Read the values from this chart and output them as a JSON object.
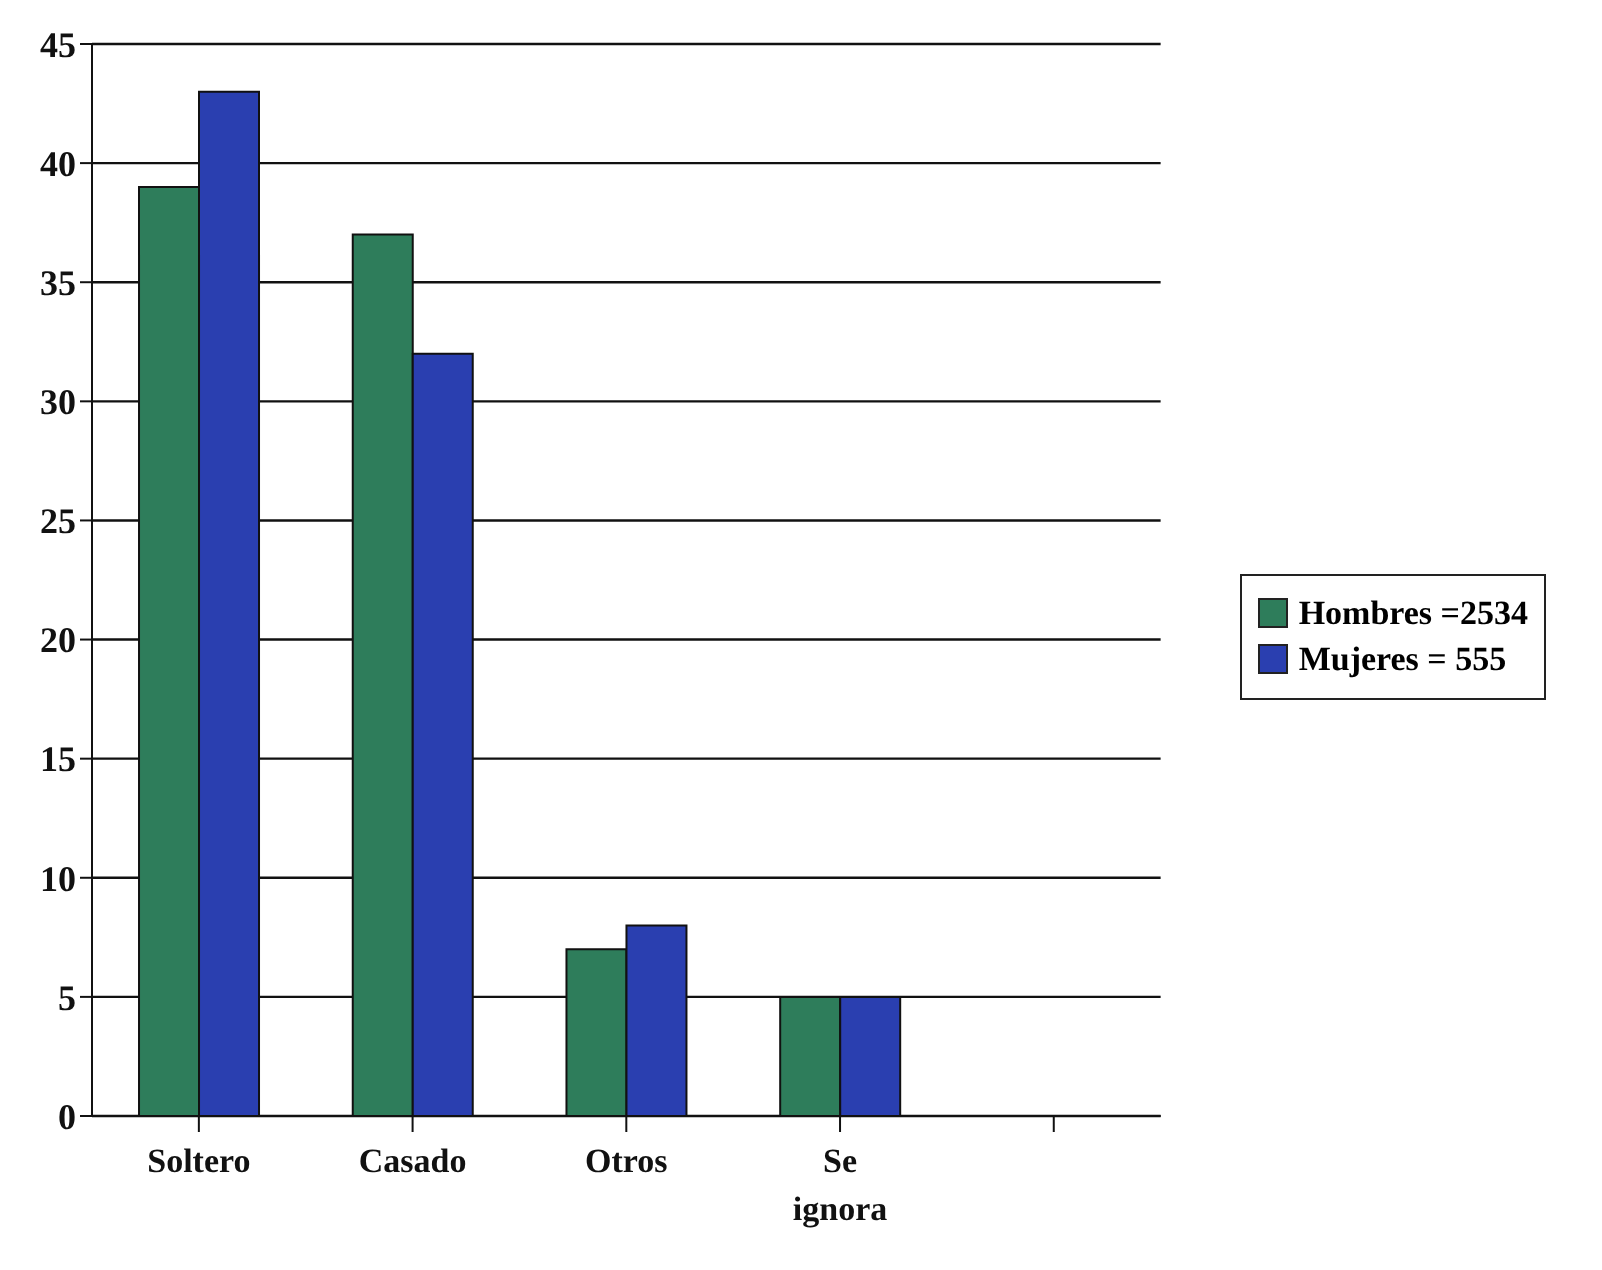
{
  "chart_data": {
    "type": "bar",
    "categories": [
      "Soltero",
      "Casado",
      "Otros",
      "Se ignora",
      null
    ],
    "series": [
      {
        "name": "Hombres =2534",
        "color": "#2e7d5b",
        "values": [
          39,
          37,
          7,
          5,
          null
        ]
      },
      {
        "name": "Mujeres = 555",
        "color": "#2a3fb0",
        "values": [
          43,
          32,
          8,
          5,
          null
        ]
      }
    ],
    "ylim": [
      0,
      45
    ],
    "yticks": [
      0,
      5,
      10,
      15,
      20,
      25,
      30,
      35,
      40,
      45
    ],
    "grid": "y",
    "legend": "right"
  }
}
